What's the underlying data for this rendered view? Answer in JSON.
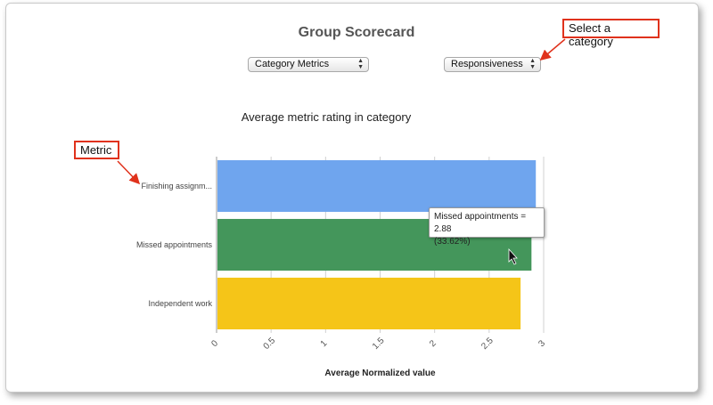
{
  "header": {
    "title": "Group Scorecard"
  },
  "controls": {
    "view_select": {
      "value": "Category Metrics"
    },
    "category_select": {
      "value": "Responsiveness"
    }
  },
  "annotations": {
    "category_callout": "Select a category",
    "metric_callout": "Metric"
  },
  "tooltip": {
    "line1": "Missed appointments = 2.88",
    "line2": "(33.62%)"
  },
  "colors": {
    "accent_red": "#e0321c"
  },
  "chart_data": {
    "type": "bar",
    "orientation": "horizontal",
    "title": "Average metric rating in category",
    "xlabel": "Average Normalized value",
    "ylabel": "",
    "categories": [
      "Finishing assignm...",
      "Missed appointments",
      "Independent work"
    ],
    "values": [
      2.92,
      2.88,
      2.78
    ],
    "colors": [
      "#6fa5ee",
      "#44965b",
      "#f5c518"
    ],
    "xlim": [
      0,
      3
    ],
    "xticks": [
      "0",
      "0.5",
      "1",
      "1.5",
      "2",
      "2.5",
      "3"
    ],
    "grid": true
  }
}
